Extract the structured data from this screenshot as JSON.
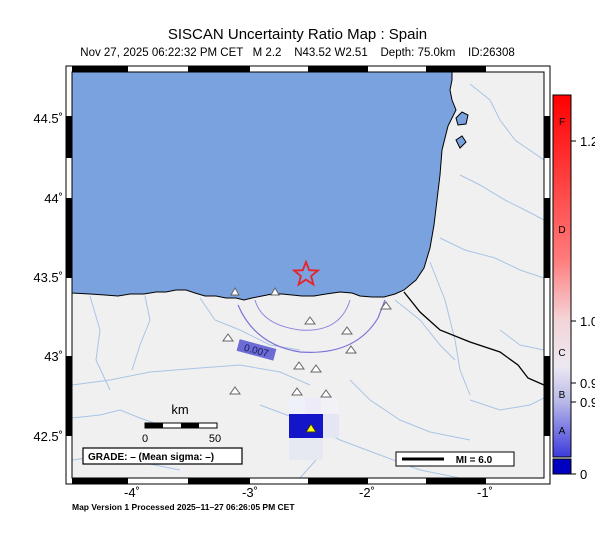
{
  "header": {
    "title": "SISCAN Uncertainty Ratio Map : Spain",
    "subtitle": "Nov 27, 2025 06:22:32 PM CET   M 2.2    N43.52 W2.51    Depth: 75.0km    ID:26308"
  },
  "map": {
    "lat_ticks": [
      "44.5˚",
      "44˚",
      "43.5˚",
      "43˚",
      "42.5˚"
    ],
    "lon_ticks": [
      "-4˚",
      "-3˚",
      "-2˚",
      "-1˚"
    ],
    "contour_label": "0.007",
    "scalebar": {
      "unit": "km",
      "min": "0",
      "max": "50"
    },
    "grade_text": "GRADE: – (Mean sigma: –)",
    "mi_text": "MI = 6.0",
    "colors": {
      "sea": "#7aa2de",
      "land": "#f0f0f0",
      "river": "#a9c4e6",
      "epicenter": "#e8212a",
      "contour": "#7b73d8",
      "cell": "#1414c8",
      "station": "#ffff00"
    }
  },
  "colorbar": {
    "letters": [
      "F",
      "D",
      "C",
      "B",
      "A"
    ],
    "values": [
      "1.2",
      "1.0",
      "0.9",
      "0.9",
      "0"
    ]
  },
  "footer": {
    "text": "Map Version 1 Processed 2025–11–27 06:26:05 PM CET"
  }
}
